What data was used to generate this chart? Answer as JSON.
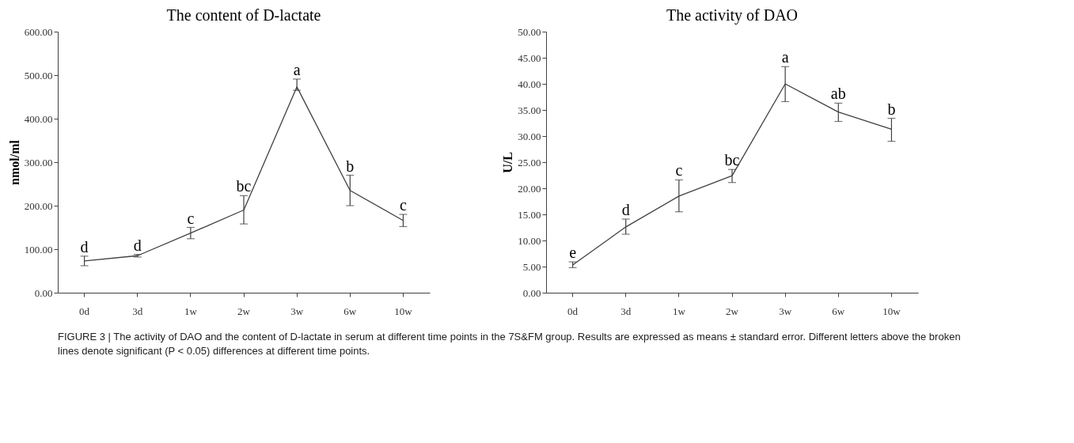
{
  "chart_data": [
    {
      "type": "line",
      "title": "The content of D-lactate",
      "ylabel": "nmol/ml",
      "categories": [
        "0d",
        "3d",
        "1w",
        "2w",
        "3w",
        "6w",
        "10w"
      ],
      "series": [
        {
          "color": "#404040",
          "values": [
            73,
            85,
            137,
            190,
            473,
            235,
            166
          ],
          "errors": [
            [
              62,
              84
            ],
            [
              82,
              88
            ],
            [
              124,
              150
            ],
            [
              158,
              223
            ],
            [
              465,
              491
            ],
            [
              200,
              270
            ],
            [
              152,
              180
            ]
          ]
        }
      ],
      "ylim": [
        0,
        600
      ],
      "yticks": [
        {
          "value": 0,
          "label": "0.00"
        },
        {
          "value": 100,
          "label": "100.00"
        },
        {
          "value": 200,
          "label": "200.00"
        },
        {
          "value": 300,
          "label": "300.00"
        },
        {
          "value": 400,
          "label": "400.00"
        },
        {
          "value": 500,
          "label": "500.00"
        },
        {
          "value": 600,
          "label": "600.00"
        }
      ],
      "grid": false,
      "marker": "none",
      "line_style": "solid",
      "annotations": [
        {
          "text": "d",
          "x": "0d",
          "y": 84
        },
        {
          "text": "d",
          "x": "3d",
          "y": 88
        },
        {
          "text": "c",
          "x": "1w",
          "y": 150
        },
        {
          "text": "bc",
          "x": "2w",
          "y": 223
        },
        {
          "text": "a",
          "x": "3w",
          "y": 491
        },
        {
          "text": "b",
          "x": "6w",
          "y": 270
        },
        {
          "text": "c",
          "x": "10w",
          "y": 180
        },
        "FIGURE 3 | The activity of DAO and the content of D-lactate in serum at different time points in the 7S&FM group. Results are expressed as means ± standard error. Different letters above the broken lines denote significant (P < 0.05) differences at different time points."
      ]
    },
    {
      "type": "line",
      "title": "The activity of DAO",
      "ylabel": "U/L",
      "categories": [
        "0d",
        "3d",
        "1w",
        "2w",
        "3w",
        "6w",
        "10w"
      ],
      "series": [
        {
          "color": "#404040",
          "values": [
            5.3,
            12.6,
            18.5,
            22.4,
            40.0,
            34.6,
            31.3
          ],
          "errors": [
            [
              4.8,
              5.9
            ],
            [
              11.2,
              14.1
            ],
            [
              15.5,
              21.6
            ],
            [
              21.1,
              23.6
            ],
            [
              36.6,
              43.3
            ],
            [
              32.8,
              36.3
            ],
            [
              29.0,
              33.4
            ]
          ]
        }
      ],
      "ylim": [
        0,
        50
      ],
      "yticks": [
        {
          "value": 0,
          "label": "0.00"
        },
        {
          "value": 5,
          "label": "5.00"
        },
        {
          "value": 10,
          "label": "10.00"
        },
        {
          "value": 15,
          "label": "15.00"
        },
        {
          "value": 20,
          "label": "20.00"
        },
        {
          "value": 25,
          "label": "25.00"
        },
        {
          "value": 30,
          "label": "30.00"
        },
        {
          "value": 35,
          "label": "35.00"
        },
        {
          "value": 40,
          "label": "40.00"
        },
        {
          "value": 45,
          "label": "45.00"
        },
        {
          "value": 50,
          "label": "50.00"
        }
      ],
      "grid": false,
      "marker": "none",
      "line_style": "solid",
      "annotations": [
        {
          "text": "e",
          "x": "0d",
          "y": 5.9
        },
        {
          "text": "d",
          "x": "3d",
          "y": 14.1
        },
        {
          "text": "c",
          "x": "1w",
          "y": 21.6
        },
        {
          "text": "bc",
          "x": "2w",
          "y": 23.6
        },
        {
          "text": "a",
          "x": "3w",
          "y": 43.3
        },
        {
          "text": "ab",
          "x": "6w",
          "y": 36.3
        },
        {
          "text": "b",
          "x": "10w",
          "y": 33.4
        }
      ]
    }
  ]
}
